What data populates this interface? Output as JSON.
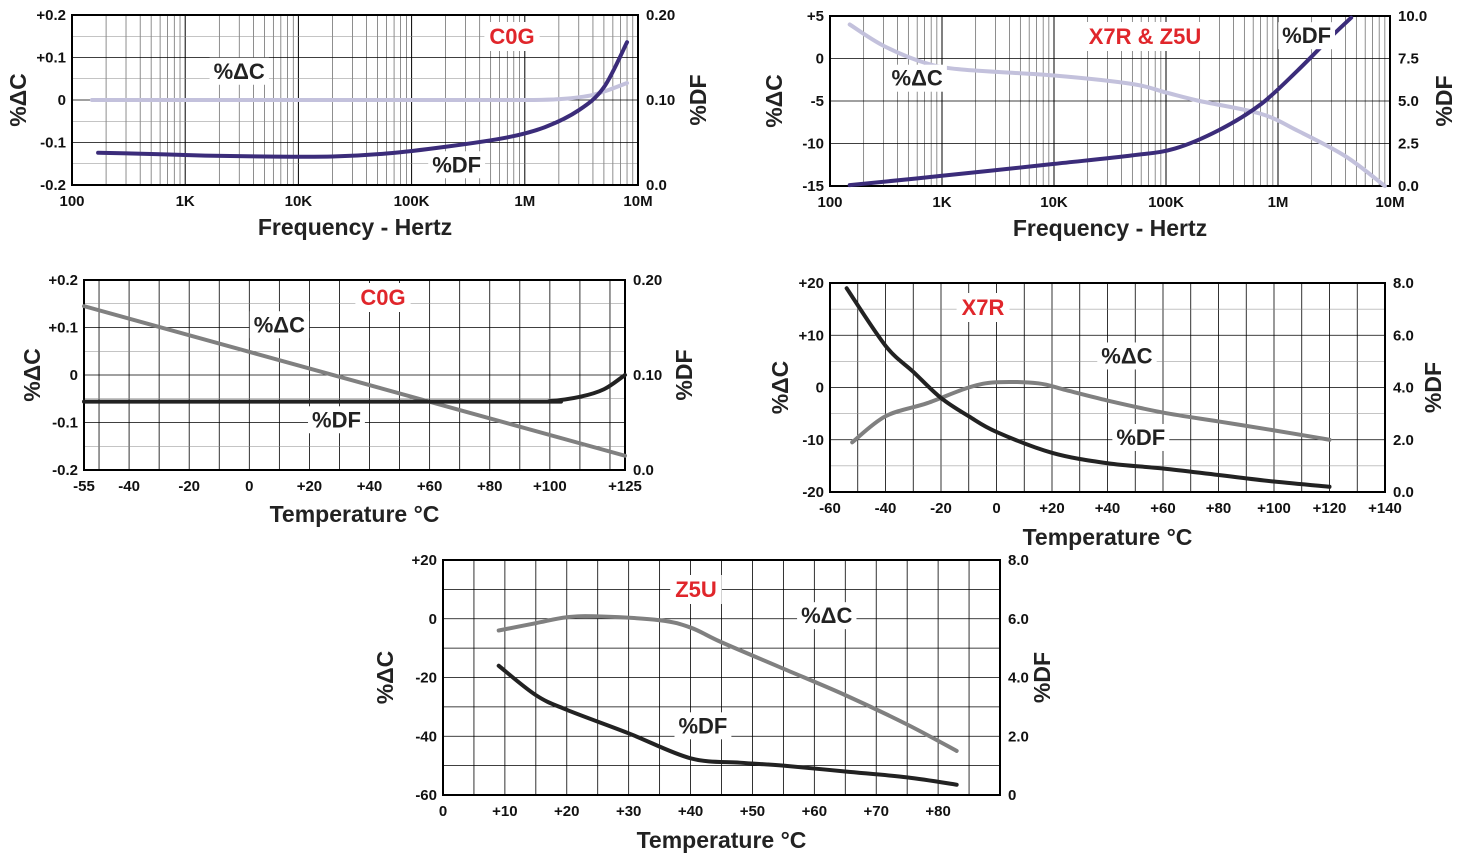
{
  "chart_data": [
    {
      "id": "freq-c0g",
      "type": "line",
      "x_scale": "log",
      "title": "C0G",
      "xlabel": "Frequency - Hertz",
      "ylabel_left": "%ΔC",
      "ylabel_right": "%DF",
      "xlim": [
        100,
        10000000
      ],
      "ylim_left": [
        -0.2,
        0.2
      ],
      "ylim_right": [
        0.0,
        0.2
      ],
      "x_ticks": [
        {
          "v": 100,
          "label": "100"
        },
        {
          "v": 1000,
          "label": "1K"
        },
        {
          "v": 10000,
          "label": "10K"
        },
        {
          "v": 100000,
          "label": "100K"
        },
        {
          "v": 1000000,
          "label": "1M"
        },
        {
          "v": 10000000,
          "label": "10M"
        }
      ],
      "y_ticks_left": [
        {
          "v": 0.2,
          "label": "+0.2"
        },
        {
          "v": 0.1,
          "label": "+0.1"
        },
        {
          "v": 0,
          "label": "0"
        },
        {
          "v": -0.1,
          "label": "-0.1"
        },
        {
          "v": -0.2,
          "label": "-0.2"
        }
      ],
      "y_ticks_right": [
        {
          "v": 0.2,
          "label": "0.20"
        },
        {
          "v": 0.1,
          "label": "0.10"
        },
        {
          "v": 0.0,
          "label": "0.0"
        }
      ],
      "grid": true,
      "series": [
        {
          "name": "%ΔC",
          "axis": "left",
          "color": "#c3c1dc",
          "label_at": [
            3000,
            0.05
          ],
          "points": [
            [
              150,
              0
            ],
            [
              1000,
              0
            ],
            [
              100000,
              0
            ],
            [
              1000000,
              0
            ],
            [
              2000000,
              0.002
            ],
            [
              4000000,
              0.012
            ],
            [
              8000000,
              0.04
            ]
          ]
        },
        {
          "name": "%DF",
          "axis": "right",
          "color": "#3b2c7a",
          "label_at": [
            250000,
            0.015
          ],
          "points": [
            [
              170,
              0.038
            ],
            [
              500,
              0.0365
            ],
            [
              1500,
              0.0345
            ],
            [
              5000,
              0.0335
            ],
            [
              20000,
              0.0335
            ],
            [
              60000,
              0.037
            ],
            [
              200000,
              0.045
            ],
            [
              700000,
              0.056
            ],
            [
              1500000,
              0.068
            ],
            [
              3000000,
              0.088
            ],
            [
              5000000,
              0.115
            ],
            [
              8000000,
              0.168
            ]
          ]
        }
      ]
    },
    {
      "id": "freq-x7r-z5u",
      "type": "line",
      "x_scale": "log",
      "title": "X7R & Z5U",
      "xlabel": "Frequency - Hertz",
      "ylabel_left": "%ΔC",
      "ylabel_right": "%DF",
      "xlim": [
        100,
        10000000
      ],
      "ylim_left": [
        -15,
        5
      ],
      "ylim_right": [
        0.0,
        10.0
      ],
      "x_ticks": [
        {
          "v": 100,
          "label": "100"
        },
        {
          "v": 1000,
          "label": "1K"
        },
        {
          "v": 10000,
          "label": "10K"
        },
        {
          "v": 100000,
          "label": "100K"
        },
        {
          "v": 1000000,
          "label": "1M"
        },
        {
          "v": 10000000,
          "label": "10M"
        }
      ],
      "y_ticks_left": [
        {
          "v": 5,
          "label": "+5"
        },
        {
          "v": 0,
          "label": "0"
        },
        {
          "v": -5,
          "label": "-5"
        },
        {
          "v": -10,
          "label": "-10"
        },
        {
          "v": -15,
          "label": "-15"
        }
      ],
      "y_ticks_right": [
        {
          "v": 10,
          "label": "10.0"
        },
        {
          "v": 7.5,
          "label": "7.5"
        },
        {
          "v": 5,
          "label": "5.0"
        },
        {
          "v": 2.5,
          "label": "2.5"
        },
        {
          "v": 0,
          "label": "0.0"
        }
      ],
      "grid": true,
      "series": [
        {
          "name": "%ΔC",
          "axis": "left",
          "color": "#c3c1dc",
          "label_at": [
            600,
            -3.2
          ],
          "points": [
            [
              150,
              4
            ],
            [
              300,
              1.5
            ],
            [
              700,
              -0.5
            ],
            [
              1500,
              -1.3
            ],
            [
              10000,
              -2
            ],
            [
              50000,
              -3
            ],
            [
              100000,
              -4
            ],
            [
              200000,
              -5
            ],
            [
              700000,
              -6.5
            ],
            [
              1500000,
              -8.5
            ],
            [
              4000000,
              -11.5
            ],
            [
              9000000,
              -15
            ]
          ]
        },
        {
          "name": "%DF",
          "axis": "right",
          "color": "#3b2c7a",
          "label_at": [
            1800000,
            8.4
          ],
          "points": [
            [
              150,
              0.05
            ],
            [
              1000,
              0.6
            ],
            [
              10000,
              1.3
            ],
            [
              50000,
              1.8
            ],
            [
              120000,
              2.2
            ],
            [
              300000,
              3.3
            ],
            [
              700000,
              4.8
            ],
            [
              1500000,
              6.8
            ],
            [
              3000000,
              8.8
            ],
            [
              4500000,
              9.9
            ]
          ]
        }
      ]
    },
    {
      "id": "temp-c0g",
      "type": "line",
      "x_scale": "linear",
      "title": "C0G",
      "xlabel": "Temperature °C",
      "ylabel_left": "%ΔC",
      "ylabel_right": "%DF",
      "xlim": [
        -55,
        125
      ],
      "ylim_left": [
        -0.2,
        0.2
      ],
      "ylim_right": [
        0.0,
        0.2
      ],
      "x_ticks": [
        {
          "v": -55,
          "label": "-55"
        },
        {
          "v": -40,
          "label": "-40"
        },
        {
          "v": -20,
          "label": "-20"
        },
        {
          "v": 0,
          "label": "0"
        },
        {
          "v": 20,
          "label": "+20"
        },
        {
          "v": 40,
          "label": "+40"
        },
        {
          "v": 60,
          "label": "+60"
        },
        {
          "v": 80,
          "label": "+80"
        },
        {
          "v": 100,
          "label": "+100"
        },
        {
          "v": 125,
          "label": "+125"
        }
      ],
      "y_ticks_left": [
        {
          "v": 0.2,
          "label": "+0.2"
        },
        {
          "v": 0.1,
          "label": "+0.1"
        },
        {
          "v": 0,
          "label": "0"
        },
        {
          "v": -0.1,
          "label": "-0.1"
        },
        {
          "v": -0.2,
          "label": "-0.2"
        }
      ],
      "y_ticks_right": [
        {
          "v": 0.2,
          "label": "0.20"
        },
        {
          "v": 0.1,
          "label": "0.10"
        },
        {
          "v": 0.0,
          "label": "0.0"
        }
      ],
      "grid": true,
      "series": [
        {
          "name": "%ΔC",
          "axis": "left",
          "color": "#808080",
          "label_at": [
            10,
            0.09
          ],
          "points": [
            [
              -55,
              0.145
            ],
            [
              125,
              -0.17
            ]
          ]
        },
        {
          "name": "%DF",
          "axis": "right",
          "color": "#222222",
          "label_at": [
            29,
            0.045
          ],
          "points": [
            [
              -55,
              0.072
            ],
            [
              90,
              0.072
            ],
            [
              100,
              0.0725
            ],
            [
              110,
              0.077
            ],
            [
              118,
              0.085
            ],
            [
              125,
              0.1
            ]
          ]
        }
      ]
    },
    {
      "id": "temp-x7r",
      "type": "line",
      "x_scale": "linear",
      "title": "X7R",
      "xlabel": "Temperature °C",
      "ylabel_left": "%ΔC",
      "ylabel_right": "%DF",
      "xlim": [
        -60,
        140
      ],
      "ylim_left": [
        -20,
        20
      ],
      "ylim_right": [
        0.0,
        8.0
      ],
      "x_ticks": [
        {
          "v": -60,
          "label": "-60"
        },
        {
          "v": -40,
          "label": "-40"
        },
        {
          "v": -20,
          "label": "-20"
        },
        {
          "v": 0,
          "label": "0"
        },
        {
          "v": 20,
          "label": "+20"
        },
        {
          "v": 40,
          "label": "+40"
        },
        {
          "v": 60,
          "label": "+60"
        },
        {
          "v": 80,
          "label": "+80"
        },
        {
          "v": 100,
          "label": "+100"
        },
        {
          "v": 120,
          "label": "+120"
        },
        {
          "v": 140,
          "label": "+140"
        }
      ],
      "y_ticks_left": [
        {
          "v": 20,
          "label": "+20"
        },
        {
          "v": 10,
          "label": "+10"
        },
        {
          "v": 0,
          "label": "0"
        },
        {
          "v": -10,
          "label": "-10"
        },
        {
          "v": -20,
          "label": "-20"
        }
      ],
      "y_ticks_right": [
        {
          "v": 8,
          "label": "8.0"
        },
        {
          "v": 6,
          "label": "6.0"
        },
        {
          "v": 4,
          "label": "4.0"
        },
        {
          "v": 2,
          "label": "2.0"
        },
        {
          "v": 0,
          "label": "0.0"
        }
      ],
      "grid": true,
      "series": [
        {
          "name": "%ΔC",
          "axis": "left",
          "color": "#808080",
          "label_at": [
            47,
            4.6
          ],
          "points": [
            [
              -52,
              -10.5
            ],
            [
              -40,
              -5.5
            ],
            [
              -25,
              -3
            ],
            [
              -10,
              0
            ],
            [
              0,
              1
            ],
            [
              15,
              0.8
            ],
            [
              25,
              -0.5
            ],
            [
              40,
              -2.5
            ],
            [
              60,
              -4.8
            ],
            [
              80,
              -6.5
            ],
            [
              100,
              -8.2
            ],
            [
              120,
              -10
            ]
          ]
        },
        {
          "name": "%DF",
          "axis": "right",
          "color": "#222222",
          "label_at": [
            52,
            1.8
          ],
          "points": [
            [
              -54,
              7.8
            ],
            [
              -40,
              5.6
            ],
            [
              -30,
              4.6
            ],
            [
              -20,
              3.6
            ],
            [
              -10,
              2.9
            ],
            [
              0,
              2.3
            ],
            [
              20,
              1.5
            ],
            [
              40,
              1.1
            ],
            [
              60,
              0.9
            ],
            [
              80,
              0.65
            ],
            [
              100,
              0.4
            ],
            [
              120,
              0.2
            ]
          ]
        }
      ]
    },
    {
      "id": "temp-z5u",
      "type": "line",
      "x_scale": "linear",
      "title": "Z5U",
      "xlabel": "Temperature °C",
      "ylabel_left": "%ΔC",
      "ylabel_right": "%DF",
      "xlim": [
        0,
        90
      ],
      "ylim_left": [
        -60,
        20
      ],
      "ylim_right": [
        0,
        8.0
      ],
      "x_ticks": [
        {
          "v": 0,
          "label": "0"
        },
        {
          "v": 10,
          "label": "+10"
        },
        {
          "v": 20,
          "label": "+20"
        },
        {
          "v": 30,
          "label": "+30"
        },
        {
          "v": 40,
          "label": "+40"
        },
        {
          "v": 50,
          "label": "+50"
        },
        {
          "v": 60,
          "label": "+60"
        },
        {
          "v": 70,
          "label": "+70"
        },
        {
          "v": 80,
          "label": "+80"
        }
      ],
      "y_ticks_left": [
        {
          "v": 20,
          "label": "+20"
        },
        {
          "v": 0,
          "label": "0"
        },
        {
          "v": -20,
          "label": "-20"
        },
        {
          "v": -40,
          "label": "-40"
        },
        {
          "v": -60,
          "label": "-60"
        }
      ],
      "y_ticks_right": [
        {
          "v": 8,
          "label": "8.0"
        },
        {
          "v": 6,
          "label": "6.0"
        },
        {
          "v": 4,
          "label": "4.0"
        },
        {
          "v": 2,
          "label": "2.0"
        },
        {
          "v": 0,
          "label": "0"
        }
      ],
      "grid": true,
      "series": [
        {
          "name": "%ΔC",
          "axis": "left",
          "color": "#808080",
          "label_at": [
            62,
            -1.5
          ],
          "points": [
            [
              9,
              -4
            ],
            [
              15,
              -1.5
            ],
            [
              20,
              0.5
            ],
            [
              25,
              0.8
            ],
            [
              35,
              -0.5
            ],
            [
              40,
              -3
            ],
            [
              45,
              -8
            ],
            [
              55,
              -17
            ],
            [
              65,
              -26
            ],
            [
              75,
              -36
            ],
            [
              83,
              -45
            ]
          ]
        },
        {
          "name": "%DF",
          "axis": "right",
          "color": "#222222",
          "label_at": [
            42,
            2.1
          ],
          "points": [
            [
              9,
              4.4
            ],
            [
              15,
              3.4
            ],
            [
              20,
              2.9
            ],
            [
              30,
              2.1
            ],
            [
              40,
              1.25
            ],
            [
              48,
              1.1
            ],
            [
              55,
              1.0
            ],
            [
              65,
              0.8
            ],
            [
              75,
              0.6
            ],
            [
              83,
              0.35
            ]
          ]
        }
      ]
    }
  ]
}
